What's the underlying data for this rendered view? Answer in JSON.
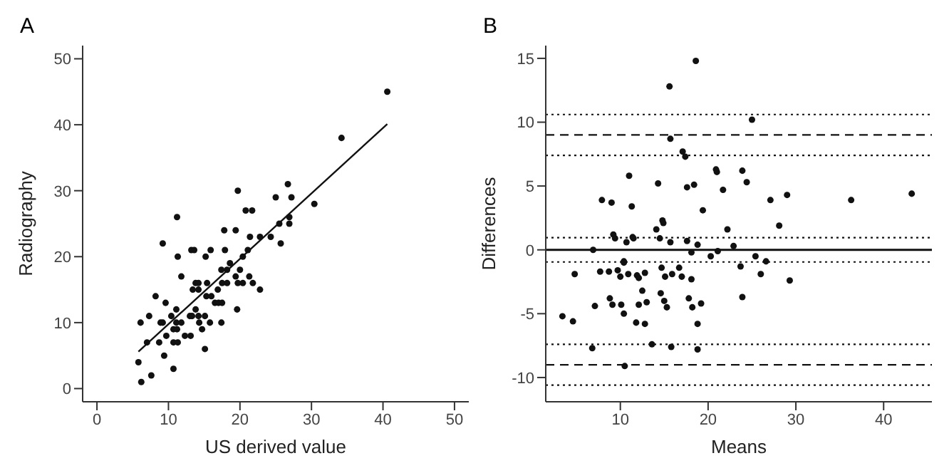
{
  "chart_data": [
    {
      "type": "scatter",
      "title": "A",
      "xlabel": "US derived value",
      "ylabel": "Radiography",
      "xlim": [
        -2,
        52
      ],
      "ylim": [
        -2,
        52
      ],
      "xticks": [
        0,
        10,
        20,
        30,
        40,
        50
      ],
      "yticks": [
        0,
        10,
        20,
        30,
        40,
        50
      ],
      "grid": false,
      "legend": false,
      "marker": "circle",
      "series": [
        {
          "color": "#111111",
          "x": [
            40.6,
            34.2,
            19.7,
            26.7,
            25.0,
            27.2,
            30.4,
            20.8,
            21.7,
            26.9,
            11.2,
            25.5,
            26.9,
            17.8,
            19.4,
            21.4,
            22.8,
            24.3,
            9.2,
            25.7,
            13.2,
            13.6,
            15.9,
            17.9,
            21.1,
            11.3,
            15.2,
            20.4,
            18.6,
            17.4,
            18.2,
            20.0,
            11.8,
            19.4,
            21.3,
            13.8,
            14.2,
            15.4,
            17.5,
            18.2,
            19.7,
            20.4,
            21.8,
            13.4,
            14.2,
            16.9,
            22.8,
            8.2,
            15.3,
            16.0,
            9.6,
            16.5,
            17.0,
            17.5,
            11.1,
            13.8,
            19.6,
            7.3,
            10.4,
            13.0,
            13.3,
            14.2,
            15.1,
            6.1,
            8.9,
            9.2,
            11.1,
            11.8,
            14.3,
            15.8,
            17.4,
            10.7,
            11.2,
            14.7,
            9.7,
            12.3,
            13.1,
            7.0,
            8.7,
            10.7,
            11.3,
            15.1,
            9.4,
            5.8,
            10.7,
            7.6,
            6.2
          ],
          "values": [
            45,
            38,
            30,
            31,
            29,
            29,
            28,
            27,
            27,
            26,
            26,
            25,
            25,
            24,
            24,
            23,
            23,
            23,
            22,
            22,
            21,
            21,
            21,
            21,
            21,
            20,
            20,
            20,
            19,
            18,
            18,
            18,
            17,
            17,
            17,
            16,
            16,
            16,
            16,
            16,
            16,
            16,
            16,
            15,
            15,
            15,
            15,
            14,
            14,
            14,
            13,
            13,
            13,
            13,
            12,
            12,
            12,
            11,
            11,
            11,
            11,
            11,
            11,
            10,
            10,
            10,
            10,
            10,
            10,
            10,
            10,
            9,
            9,
            9,
            8,
            8,
            8,
            7,
            7,
            7,
            7,
            6,
            5,
            4,
            3,
            2,
            1
          ]
        },
        {
          "type": "line",
          "color": "#111111",
          "marker": "none",
          "x": [
            5.8,
            40.6
          ],
          "values": [
            5.6,
            40.1
          ]
        }
      ]
    },
    {
      "type": "scatter",
      "title": "B",
      "xlabel": "Means",
      "ylabel": "Differences",
      "xlim": [
        1.5,
        45.5
      ],
      "ylim": [
        -11.9,
        16
      ],
      "xticks": [
        10,
        20,
        30,
        40
      ],
      "yticks": [
        -10,
        -5,
        0,
        5,
        10,
        15
      ],
      "grid": false,
      "legend": false,
      "marker": "circle",
      "ref_lines": [
        {
          "axis": "y",
          "value": 0,
          "color": "#111111",
          "line_style": "solid"
        },
        {
          "axis": "y",
          "value": 9,
          "color": "#111111",
          "line_style": "dashed"
        },
        {
          "axis": "y",
          "value": -9,
          "color": "#111111",
          "line_style": "dashed"
        },
        {
          "axis": "y",
          "value": 10.6,
          "color": "#111111",
          "line_style": "dotted"
        },
        {
          "axis": "y",
          "value": 7.4,
          "color": "#111111",
          "line_style": "dotted"
        },
        {
          "axis": "y",
          "value": 0.95,
          "color": "#111111",
          "line_style": "dotted"
        },
        {
          "axis": "y",
          "value": -0.95,
          "color": "#111111",
          "line_style": "dotted"
        },
        {
          "axis": "y",
          "value": -7.4,
          "color": "#111111",
          "line_style": "dotted"
        },
        {
          "axis": "y",
          "value": -10.6,
          "color": "#111111",
          "line_style": "dotted"
        }
      ],
      "series": [
        {
          "color": "#111111",
          "x": [
            18.6,
            15.6,
            25.0,
            15.7,
            17.1,
            17.4,
            11.0,
            20.9,
            21.0,
            23.9,
            24.4,
            14.3,
            18.4,
            17.6,
            21.7,
            7.9,
            9.0,
            11.3,
            27.1,
            29.0,
            36.3,
            43.2,
            19.4,
            14.8,
            14.9,
            28.1,
            14.1,
            22.2,
            9.2,
            9.4,
            11.4,
            11.5,
            14.5,
            10.7,
            15.7,
            17.6,
            18.8,
            22.9,
            6.9,
            18.1,
            21.1,
            20.3,
            25.4,
            10.4,
            10.4,
            26.6,
            14.7,
            16.7,
            23.7,
            4.8,
            7.7,
            8.7,
            9.7,
            26.0,
            10.0,
            10.9,
            11.9,
            12.1,
            12.8,
            15.1,
            15.9,
            17.0,
            18.1,
            29.3,
            12.5,
            14.6,
            8.8,
            17.8,
            23.9,
            13.0,
            15.0,
            19.2,
            7.1,
            9.1,
            10.1,
            12.1,
            15.3,
            18.2,
            3.4,
            10.4,
            4.6,
            11.8,
            12.8,
            18.8,
            13.6,
            15.8,
            6.8,
            18.8,
            10.5
          ],
          "values": [
            14.8,
            12.8,
            10.2,
            8.7,
            7.7,
            7.3,
            5.8,
            6.3,
            6.1,
            6.2,
            5.3,
            5.2,
            5.1,
            4.9,
            4.7,
            3.9,
            3.7,
            3.4,
            3.9,
            4.3,
            3.9,
            4.4,
            3.1,
            2.3,
            2.1,
            1.9,
            1.6,
            1.6,
            1.2,
            0.9,
            1.0,
            0.9,
            0.9,
            0.6,
            0.6,
            0.7,
            0.4,
            0.3,
            0.0,
            -0.2,
            -0.1,
            -0.5,
            -0.5,
            -0.9,
            -1.0,
            -0.9,
            -1.4,
            -1.4,
            -1.3,
            -1.9,
            -1.7,
            -1.7,
            -1.6,
            -1.9,
            -2.1,
            -1.9,
            -2.0,
            -2.2,
            -1.8,
            -2.1,
            -1.9,
            -2.1,
            -2.3,
            -2.4,
            -3.2,
            -3.4,
            -3.8,
            -3.8,
            -3.7,
            -4.1,
            -4.0,
            -4.2,
            -4.4,
            -4.3,
            -4.3,
            -4.3,
            -4.5,
            -4.5,
            -5.2,
            -5.0,
            -5.6,
            -5.7,
            -5.8,
            -5.8,
            -7.4,
            -7.6,
            -7.7,
            -7.8,
            -9.1
          ]
        }
      ]
    }
  ]
}
